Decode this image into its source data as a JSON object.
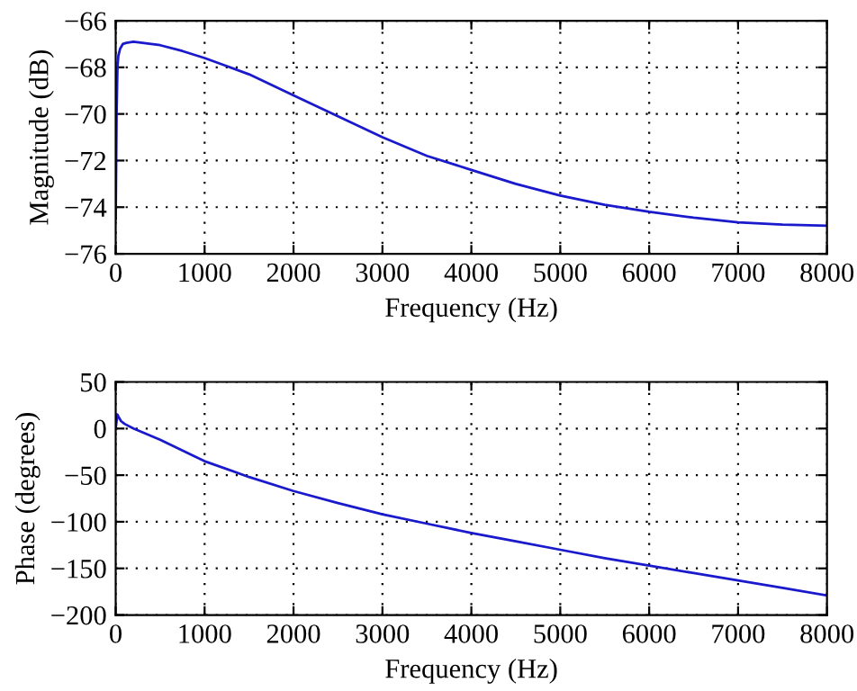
{
  "chart_data": [
    {
      "type": "line",
      "xlabel": "Frequency (Hz)",
      "ylabel": "Magnitude (dB)",
      "xlim": [
        0,
        8000
      ],
      "ylim": [
        -76,
        -66
      ],
      "xticks": [
        0,
        1000,
        2000,
        3000,
        4000,
        5000,
        6000,
        7000,
        8000
      ],
      "yticks": [
        -76,
        -74,
        -72,
        -70,
        -68,
        -66
      ],
      "grid": true,
      "line_style": "solid",
      "series": [
        {
          "color": "#1a1acc",
          "x": [
            0,
            10,
            20,
            30,
            50,
            80,
            120,
            200,
            300,
            500,
            750,
            1000,
            1250,
            1500,
            1750,
            2000,
            2500,
            3000,
            3500,
            4000,
            4500,
            5000,
            5500,
            6000,
            6500,
            7000,
            7500,
            8000
          ],
          "values": [
            -74.5,
            -70,
            -68,
            -67.5,
            -67.2,
            -67.0,
            -66.95,
            -66.9,
            -66.95,
            -67.05,
            -67.3,
            -67.6,
            -67.95,
            -68.3,
            -68.75,
            -69.2,
            -70.1,
            -71.0,
            -71.8,
            -72.4,
            -73.0,
            -73.5,
            -73.9,
            -74.2,
            -74.45,
            -74.65,
            -74.75,
            -74.8
          ]
        }
      ]
    },
    {
      "type": "line",
      "xlabel": "Frequency (Hz)",
      "ylabel": "Phase (degrees)",
      "xlim": [
        0,
        8000
      ],
      "ylim": [
        -200,
        50
      ],
      "xticks": [
        0,
        1000,
        2000,
        3000,
        4000,
        5000,
        6000,
        7000,
        8000
      ],
      "yticks": [
        -200,
        -150,
        -100,
        -50,
        0,
        50
      ],
      "grid": true,
      "line_style": "solid",
      "series": [
        {
          "color": "#1a1acc",
          "x": [
            0,
            10,
            20,
            30,
            60,
            100,
            200,
            500,
            1000,
            1500,
            2000,
            2500,
            3000,
            3500,
            4000,
            4500,
            5000,
            5500,
            6000,
            6500,
            7000,
            7500,
            8000
          ],
          "values": [
            0,
            8,
            15,
            13,
            8,
            5,
            0,
            -12,
            -35,
            -52,
            -67,
            -80,
            -92,
            -102,
            -112,
            -121,
            -130,
            -139,
            -147,
            -155,
            -163,
            -171,
            -179
          ]
        }
      ]
    }
  ]
}
